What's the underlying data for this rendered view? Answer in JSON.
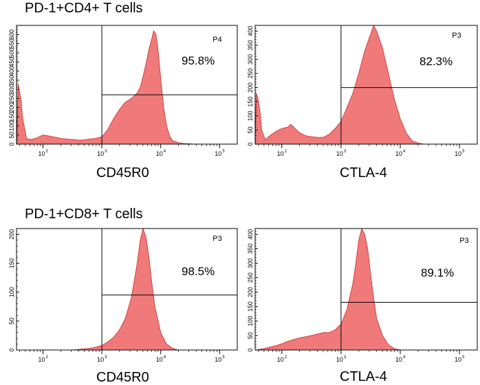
{
  "titles": {
    "top": "PD-1+CD4+ T cells",
    "bottom": "PD-1+CD8+ T cells"
  },
  "colors": {
    "fill": "#f07a7a",
    "stroke": "#c92a2a",
    "axis": "#000000"
  },
  "chart_data": [
    {
      "type": "area",
      "name": "cd4-cd45r0",
      "section": "PD-1+CD4+ T cells",
      "xlabel": "CD45R0",
      "gate_label": "P4",
      "gate_percent": "95.8%",
      "gate_start_decade": 3.0,
      "gate_level": 270,
      "divider_decade": 3.0,
      "ylim": [
        0,
        650
      ],
      "yticks": [
        0,
        50,
        100,
        150,
        200,
        250,
        300,
        350,
        400,
        450,
        500,
        550,
        600
      ],
      "ytick_labels": [
        "0",
        "50",
        "100",
        "150",
        "200",
        "250",
        "300",
        "350",
        "400",
        "450",
        "500",
        "550",
        "600"
      ],
      "xlim_decades": [
        1.55,
        5.3
      ],
      "xticks": [
        {
          "decade": 2,
          "base": "10",
          "exp": "2"
        },
        {
          "decade": 3,
          "base": "10",
          "exp": "3"
        },
        {
          "decade": 4,
          "base": "10",
          "exp": "4"
        },
        {
          "decade": 5,
          "base": "10",
          "exp": "5"
        }
      ],
      "curve": [
        [
          1.55,
          5
        ],
        [
          1.58,
          330
        ],
        [
          1.6,
          290
        ],
        [
          1.63,
          240
        ],
        [
          1.65,
          150
        ],
        [
          1.68,
          100
        ],
        [
          1.72,
          30
        ],
        [
          1.8,
          25
        ],
        [
          1.9,
          35
        ],
        [
          2.0,
          50
        ],
        [
          2.1,
          45
        ],
        [
          2.2,
          38
        ],
        [
          2.3,
          32
        ],
        [
          2.4,
          28
        ],
        [
          2.5,
          25
        ],
        [
          2.6,
          22
        ],
        [
          2.7,
          24
        ],
        [
          2.8,
          28
        ],
        [
          2.9,
          32
        ],
        [
          3.0,
          40
        ],
        [
          3.1,
          80
        ],
        [
          3.2,
          140
        ],
        [
          3.3,
          190
        ],
        [
          3.4,
          230
        ],
        [
          3.5,
          250
        ],
        [
          3.6,
          280
        ],
        [
          3.65,
          310
        ],
        [
          3.7,
          370
        ],
        [
          3.75,
          440
        ],
        [
          3.8,
          520
        ],
        [
          3.85,
          580
        ],
        [
          3.88,
          620
        ],
        [
          3.92,
          600
        ],
        [
          3.95,
          530
        ],
        [
          4.0,
          360
        ],
        [
          4.05,
          200
        ],
        [
          4.1,
          100
        ],
        [
          4.15,
          45
        ],
        [
          4.2,
          20
        ],
        [
          4.3,
          8
        ],
        [
          4.4,
          3
        ],
        [
          4.6,
          0
        ],
        [
          5.3,
          0
        ]
      ]
    },
    {
      "type": "area",
      "name": "cd4-ctla4",
      "section": "PD-1+CD4+ T cells",
      "xlabel": "CTLA-4",
      "gate_label": "P3",
      "gate_percent": "82.3%",
      "gate_start_decade": 3.0,
      "gate_level": 200,
      "divider_decade": 3.0,
      "ylim": [
        0,
        420
      ],
      "yticks": [
        0,
        50,
        100,
        150,
        200,
        250,
        300,
        350,
        400
      ],
      "ytick_labels": [
        "0",
        "50",
        "100",
        "150",
        "200",
        "250",
        "300",
        "350",
        "400"
      ],
      "xlim_decades": [
        1.55,
        5.3
      ],
      "xticks": [
        {
          "decade": 2,
          "base": "10",
          "exp": "2"
        },
        {
          "decade": 3,
          "base": "10",
          "exp": "3"
        },
        {
          "decade": 4,
          "base": "10",
          "exp": "4"
        },
        {
          "decade": 5,
          "base": "10",
          "exp": "5"
        }
      ],
      "curve": [
        [
          1.55,
          5
        ],
        [
          1.57,
          180
        ],
        [
          1.6,
          160
        ],
        [
          1.63,
          120
        ],
        [
          1.66,
          50
        ],
        [
          1.72,
          15
        ],
        [
          1.8,
          30
        ],
        [
          1.9,
          45
        ],
        [
          2.0,
          55
        ],
        [
          2.1,
          60
        ],
        [
          2.15,
          70
        ],
        [
          2.2,
          60
        ],
        [
          2.3,
          40
        ],
        [
          2.4,
          30
        ],
        [
          2.5,
          26
        ],
        [
          2.6,
          24
        ],
        [
          2.7,
          24
        ],
        [
          2.8,
          35
        ],
        [
          2.9,
          55
        ],
        [
          3.0,
          80
        ],
        [
          3.1,
          130
        ],
        [
          3.2,
          180
        ],
        [
          3.3,
          250
        ],
        [
          3.4,
          330
        ],
        [
          3.5,
          390
        ],
        [
          3.55,
          420
        ],
        [
          3.6,
          400
        ],
        [
          3.7,
          340
        ],
        [
          3.8,
          250
        ],
        [
          3.9,
          160
        ],
        [
          4.0,
          90
        ],
        [
          4.1,
          40
        ],
        [
          4.2,
          12
        ],
        [
          4.3,
          4
        ],
        [
          4.4,
          0
        ],
        [
          5.3,
          0
        ]
      ]
    },
    {
      "type": "area",
      "name": "cd8-cd45r0",
      "section": "PD-1+CD8+ T cells",
      "xlabel": "CD45R0",
      "gate_label": "P3",
      "gate_percent": "98.5%",
      "gate_start_decade": 3.0,
      "gate_level": 95,
      "divider_decade": 3.0,
      "ylim": [
        0,
        210
      ],
      "yticks": [
        0,
        50,
        100,
        150,
        200
      ],
      "ytick_labels": [
        "0",
        "50",
        "100",
        "150",
        "200"
      ],
      "xlim_decades": [
        1.55,
        5.3
      ],
      "xticks": [
        {
          "decade": 2,
          "base": "10",
          "exp": "2"
        },
        {
          "decade": 3,
          "base": "10",
          "exp": "3"
        },
        {
          "decade": 4,
          "base": "10",
          "exp": "4"
        },
        {
          "decade": 5,
          "base": "10",
          "exp": "5"
        }
      ],
      "curve": [
        [
          1.55,
          0
        ],
        [
          2.5,
          0
        ],
        [
          2.6,
          1
        ],
        [
          2.7,
          2
        ],
        [
          2.8,
          3
        ],
        [
          2.9,
          5
        ],
        [
          3.0,
          8
        ],
        [
          3.1,
          14
        ],
        [
          3.2,
          22
        ],
        [
          3.3,
          35
        ],
        [
          3.4,
          55
        ],
        [
          3.5,
          90
        ],
        [
          3.6,
          150
        ],
        [
          3.65,
          190
        ],
        [
          3.7,
          210
        ],
        [
          3.75,
          195
        ],
        [
          3.8,
          160
        ],
        [
          3.85,
          115
        ],
        [
          3.9,
          75
        ],
        [
          4.0,
          30
        ],
        [
          4.1,
          10
        ],
        [
          4.2,
          3
        ],
        [
          4.3,
          0
        ],
        [
          5.3,
          0
        ]
      ]
    },
    {
      "type": "area",
      "name": "cd8-ctla4",
      "section": "PD-1+CD8+ T cells",
      "xlabel": "CTLA-4",
      "gate_label": "P3",
      "gate_percent": "89.1%",
      "gate_start_decade": 3.0,
      "gate_level": 165,
      "divider_decade": 3.0,
      "ylim": [
        0,
        420
      ],
      "yticks": [
        0,
        50,
        100,
        150,
        200,
        250,
        300,
        350,
        400
      ],
      "ytick_labels": [
        "0",
        "50",
        "100",
        "150",
        "200",
        "250",
        "300",
        "350",
        "400"
      ],
      "xlim_decades": [
        1.55,
        5.3
      ],
      "xticks": [
        {
          "decade": 2,
          "base": "10",
          "exp": "2"
        },
        {
          "decade": 3,
          "base": "10",
          "exp": "3"
        },
        {
          "decade": 4,
          "base": "10",
          "exp": "4"
        },
        {
          "decade": 5,
          "base": "10",
          "exp": "5"
        }
      ],
      "curve": [
        [
          1.55,
          0
        ],
        [
          1.7,
          5
        ],
        [
          1.8,
          10
        ],
        [
          1.9,
          15
        ],
        [
          2.0,
          22
        ],
        [
          2.1,
          30
        ],
        [
          2.2,
          36
        ],
        [
          2.3,
          42
        ],
        [
          2.4,
          46
        ],
        [
          2.5,
          50
        ],
        [
          2.6,
          55
        ],
        [
          2.7,
          60
        ],
        [
          2.8,
          60
        ],
        [
          2.9,
          70
        ],
        [
          3.0,
          90
        ],
        [
          3.1,
          140
        ],
        [
          3.2,
          230
        ],
        [
          3.25,
          300
        ],
        [
          3.3,
          380
        ],
        [
          3.35,
          420
        ],
        [
          3.4,
          400
        ],
        [
          3.45,
          350
        ],
        [
          3.5,
          260
        ],
        [
          3.55,
          180
        ],
        [
          3.6,
          110
        ],
        [
          3.7,
          50
        ],
        [
          3.8,
          18
        ],
        [
          3.9,
          5
        ],
        [
          4.0,
          0
        ],
        [
          5.3,
          0
        ]
      ]
    }
  ]
}
